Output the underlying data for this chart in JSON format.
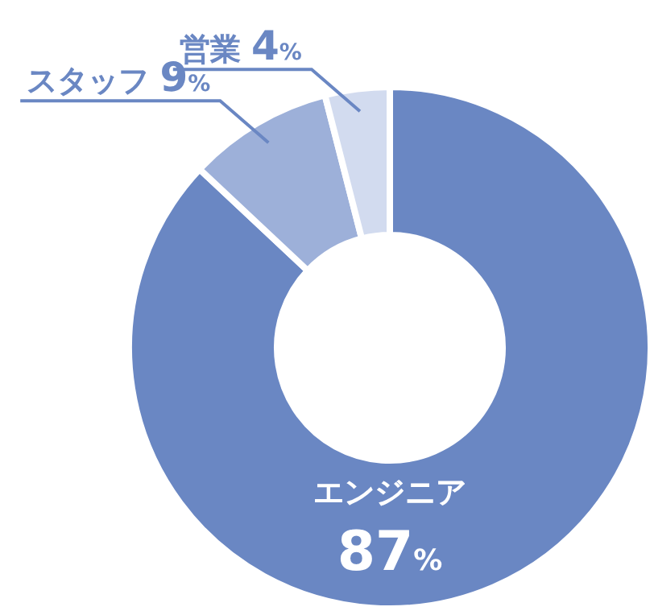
{
  "chart_data": {
    "type": "donut",
    "categories": [
      "エンジニア",
      "スタッフ",
      "営業"
    ],
    "values": [
      87,
      9,
      4
    ],
    "colors": [
      "#6a87c3",
      "#9db0d9",
      "#d2dbef"
    ],
    "value_labels": [
      "87%",
      "9%",
      "4%"
    ]
  }
}
